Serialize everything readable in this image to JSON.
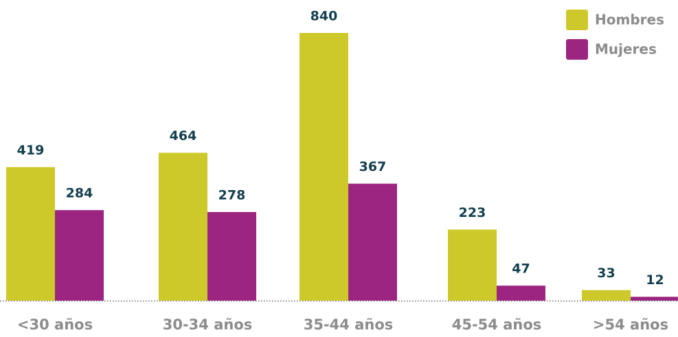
{
  "chart_data": {
    "type": "bar",
    "categories": [
      "<30 años",
      "30-34 años",
      "35-44 años",
      "45-54 años",
      ">54 años"
    ],
    "series": [
      {
        "name": "Hombres",
        "color": "#cdc92a",
        "values": [
          419,
          464,
          840,
          223,
          33
        ]
      },
      {
        "name": "Mujeres",
        "color": "#9b2580",
        "values": [
          284,
          278,
          367,
          47,
          12
        ]
      }
    ],
    "legend": "top-right"
  }
}
